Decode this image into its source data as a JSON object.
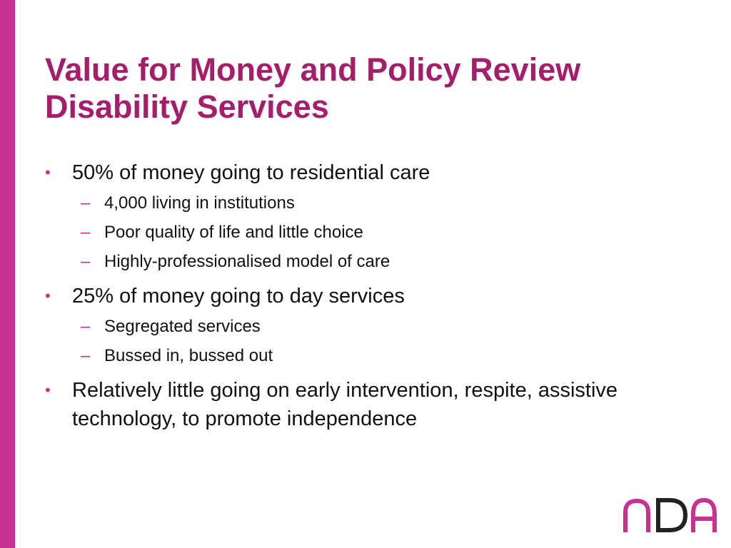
{
  "title": {
    "line1": "Value for Money and Policy Review",
    "line2": "Disability Services"
  },
  "bullets": [
    {
      "text": "50% of money going to residential care",
      "subs": [
        "4,000 living in institutions",
        "Poor quality of life and little choice",
        "Highly-professionalised model of care"
      ]
    },
    {
      "text": "25% of money going to day services",
      "subs": [
        "Segregated services",
        "Bussed in, bussed out"
      ]
    },
    {
      "text": "Relatively little going on early intervention, respite, assistive technology, to promote independence",
      "subs": []
    }
  ],
  "bullet_glyph": "•",
  "dash_glyph": "–",
  "logo": {
    "text": "nDA",
    "colors": {
      "n": "#c8318f",
      "D": "#222222",
      "A": "#c8318f"
    }
  },
  "colors": {
    "accent_bar": "#c8318f",
    "title": "#a51e6c",
    "body_text": "#111111"
  }
}
